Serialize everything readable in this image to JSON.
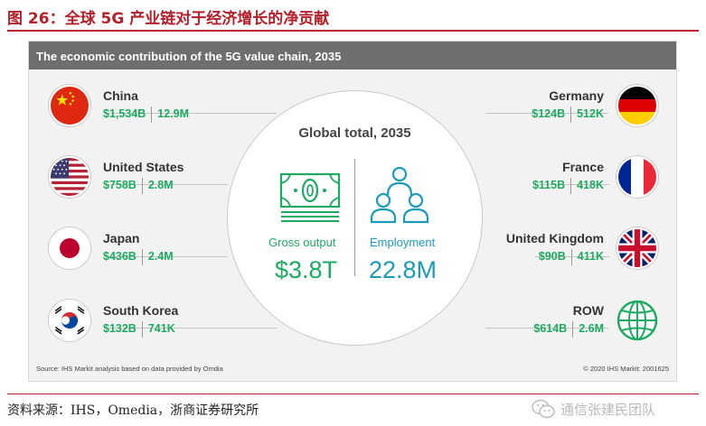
{
  "figure_title": "图 26：全球 5G 产业链对于经济增长的净贡献",
  "card": {
    "header": "The economic contribution of the 5G value chain, 2035",
    "global_title": "Global total, 2035",
    "gross_output": {
      "label": "Gross output",
      "value": "$3.8T"
    },
    "employment": {
      "label": "Employment",
      "value": "22.8M"
    },
    "source": "Source: IHS Markit analysis based on data provided by Omdia",
    "copyright": "© 2020 IHS Markit: 2001625"
  },
  "countries_left": [
    {
      "name": "China",
      "output": "$1,534B",
      "jobs": "12.9M",
      "flag": "china-flag-icon"
    },
    {
      "name": "United States",
      "output": "$758B",
      "jobs": "2.8M",
      "flag": "usa-flag-icon"
    },
    {
      "name": "Japan",
      "output": "$436B",
      "jobs": "2.4M",
      "flag": "japan-flag-icon"
    },
    {
      "name": "South Korea",
      "output": "$132B",
      "jobs": "741K",
      "flag": "south-korea-flag-icon"
    }
  ],
  "countries_right": [
    {
      "name": "Germany",
      "output": "$124B",
      "jobs": "512K",
      "flag": "germany-flag-icon"
    },
    {
      "name": "France",
      "output": "$115B",
      "jobs": "418K",
      "flag": "france-flag-icon"
    },
    {
      "name": "United Kingdom",
      "output": "$90B",
      "jobs": "411K",
      "flag": "uk-flag-icon"
    },
    {
      "name": "ROW",
      "output": "$614B",
      "jobs": "2.6M",
      "flag": "globe-icon"
    }
  ],
  "footer_source": "资料来源：IHS，Omedia，浙商证券研究所",
  "watermark": "通信张建民团队",
  "colors": {
    "title_red": "#b4202a",
    "header_gray": "#6e6e70",
    "value_green": "#1faa61",
    "employment_teal": "#1a9bb8"
  }
}
